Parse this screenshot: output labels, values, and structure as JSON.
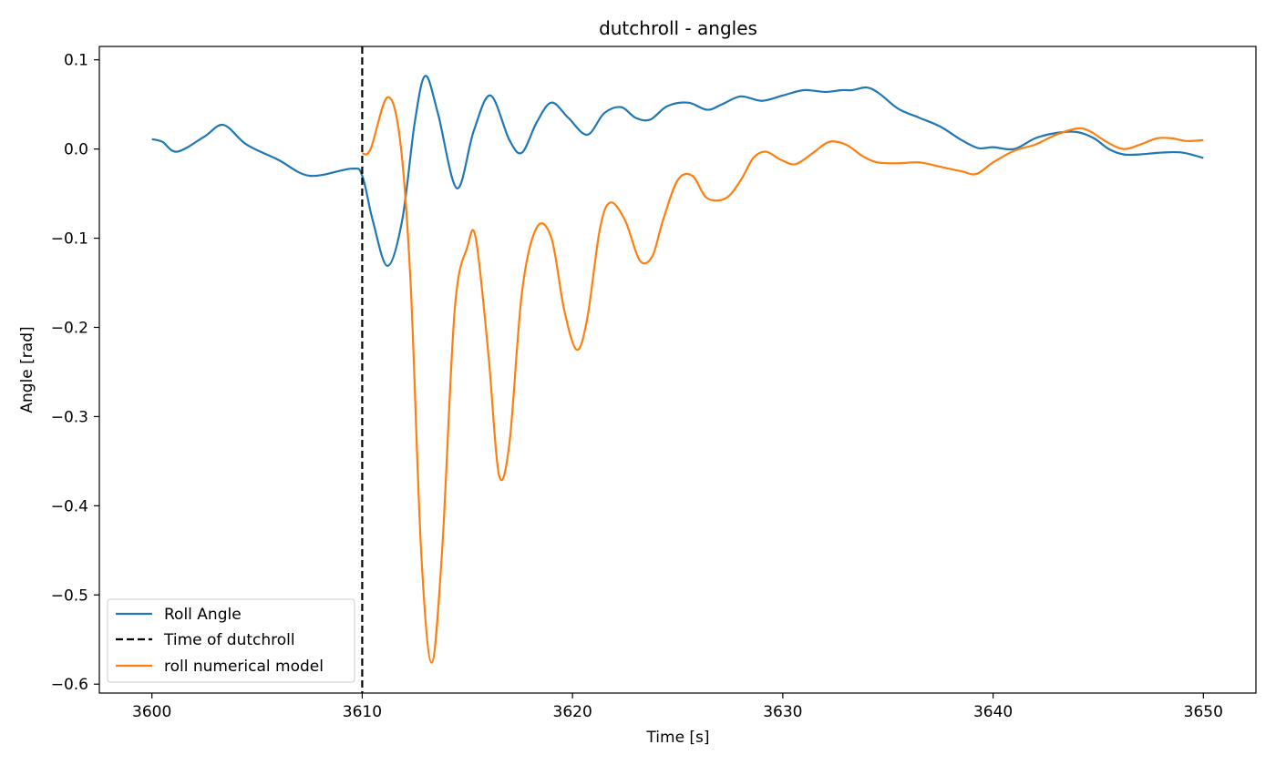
{
  "chart_data": {
    "type": "line",
    "title": "dutchroll - angles",
    "xlabel": "Time [s]",
    "ylabel": "Angle [rad]",
    "xlim": [
      3597.5,
      3652.5
    ],
    "ylim": [
      -0.61,
      0.115
    ],
    "xticks": [
      3600,
      3610,
      3620,
      3630,
      3640,
      3650
    ],
    "xtick_labels": [
      "3600",
      "3610",
      "3620",
      "3630",
      "3640",
      "3650"
    ],
    "yticks": [
      0.1,
      0.0,
      -0.1,
      -0.2,
      -0.3,
      -0.4,
      -0.5,
      -0.6
    ],
    "ytick_labels": [
      "0.1",
      "0.0",
      "−0.1",
      "−0.2",
      "−0.3",
      "−0.4",
      "−0.5",
      "−0.6"
    ],
    "grid": false,
    "legend_position": "lower-left",
    "vline": {
      "x": 3610,
      "name": "Time of dutchroll",
      "color": "#000000",
      "style": "dashed"
    },
    "series": [
      {
        "name": "Roll Angle",
        "color": "#1f77b4",
        "x": [
          3600,
          3600.5,
          3601.2,
          3602.5,
          3603.4,
          3604.5,
          3606,
          3607.5,
          3609.5,
          3610,
          3610.5,
          3611.2,
          3611.9,
          3612.5,
          3613.0,
          3613.6,
          3614.5,
          3615.3,
          3616.1,
          3617.0,
          3617.6,
          3618.3,
          3619.0,
          3619.8,
          3620.7,
          3621.5,
          3622.3,
          3623.0,
          3623.7,
          3624.5,
          3625.5,
          3626.4,
          3627.1,
          3628.0,
          3629.0,
          3630.0,
          3631.0,
          3632.0,
          3632.8,
          3633.3,
          3634.0,
          3634.6,
          3635.5,
          3636.5,
          3637.5,
          3638.5,
          3639.3,
          3640.0,
          3641.0,
          3642.0,
          3643.0,
          3644.0,
          3644.8,
          3645.5,
          3646.2,
          3647.0,
          3648.0,
          3649.0,
          3650.0
        ],
        "y": [
          0.011,
          0.008,
          -0.003,
          0.014,
          0.027,
          0.005,
          -0.012,
          -0.03,
          -0.022,
          -0.03,
          -0.08,
          -0.131,
          -0.08,
          0.03,
          0.082,
          0.04,
          -0.044,
          0.02,
          0.06,
          0.01,
          -0.004,
          0.03,
          0.052,
          0.035,
          0.016,
          0.04,
          0.047,
          0.035,
          0.033,
          0.048,
          0.052,
          0.044,
          0.05,
          0.059,
          0.054,
          0.06,
          0.066,
          0.064,
          0.066,
          0.066,
          0.069,
          0.062,
          0.045,
          0.035,
          0.025,
          0.01,
          0.001,
          0.002,
          0.0,
          0.012,
          0.018,
          0.019,
          0.012,
          0.0,
          -0.006,
          -0.006,
          -0.004,
          -0.004,
          -0.01
        ]
      },
      {
        "name": "roll numerical model",
        "color": "#ff7f0e",
        "x": [
          3610,
          3610.4,
          3611.2,
          3611.8,
          3612.3,
          3612.8,
          3613.3,
          3613.8,
          3614.4,
          3615.0,
          3615.4,
          3616.0,
          3616.5,
          3617.0,
          3617.6,
          3618.3,
          3619.0,
          3619.6,
          3620.2,
          3620.7,
          3621.3,
          3621.8,
          3622.5,
          3623.2,
          3623.8,
          3624.3,
          3625.0,
          3625.7,
          3626.4,
          3627.3,
          3628.0,
          3628.6,
          3629.2,
          3629.9,
          3630.6,
          3631.4,
          3632.2,
          3633.0,
          3633.8,
          3634.5,
          3635.5,
          3636.5,
          3637.5,
          3638.5,
          3639.2,
          3640.0,
          3641.0,
          3642.0,
          3643.0,
          3644.0,
          3644.6,
          3645.4,
          3646.2,
          3647.0,
          3647.8,
          3648.5,
          3649.2,
          3650.0
        ],
        "y": [
          -0.005,
          0.0,
          0.058,
          0.01,
          -0.15,
          -0.45,
          -0.576,
          -0.45,
          -0.18,
          -0.11,
          -0.1,
          -0.23,
          -0.365,
          -0.33,
          -0.16,
          -0.088,
          -0.1,
          -0.18,
          -0.225,
          -0.19,
          -0.09,
          -0.06,
          -0.08,
          -0.125,
          -0.12,
          -0.08,
          -0.035,
          -0.03,
          -0.055,
          -0.055,
          -0.035,
          -0.01,
          -0.003,
          -0.012,
          -0.017,
          -0.005,
          0.008,
          0.005,
          -0.008,
          -0.015,
          -0.016,
          -0.015,
          -0.02,
          -0.025,
          -0.028,
          -0.015,
          -0.002,
          0.005,
          0.016,
          0.023,
          0.02,
          0.008,
          0.0,
          0.005,
          0.012,
          0.012,
          0.009,
          0.01
        ]
      }
    ]
  }
}
